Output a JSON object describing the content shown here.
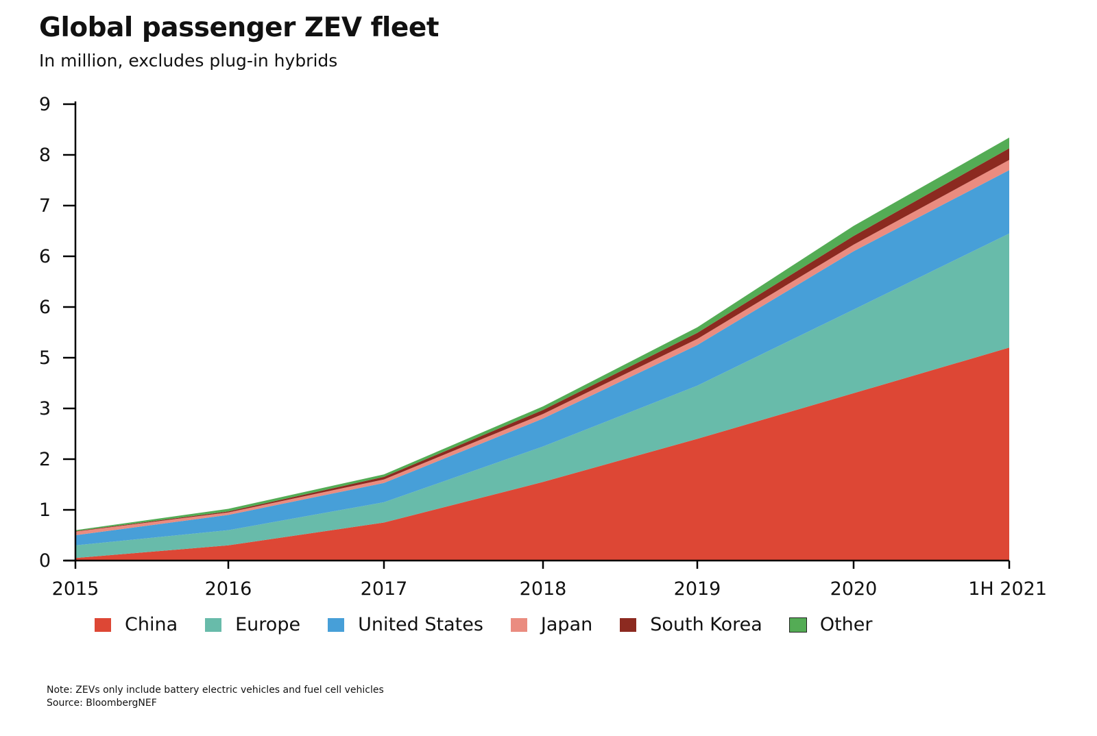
{
  "title": "Global passenger ZEV fleet",
  "subtitle": "In million, excludes plug-in hybrids",
  "note": "Note: ZEVs only include battery electric vehicles and fuel cell vehicles",
  "source": "Source: BloombergNEF",
  "chart_data": {
    "type": "area",
    "stacked": true,
    "title": "Global passenger ZEV fleet",
    "subtitle": "In million, excludes plug-in hybrids",
    "categories": [
      "2015",
      "2016",
      "2017",
      "2018",
      "2019",
      "2020",
      "1H 2021"
    ],
    "y_tick_labels": [
      "0",
      "1",
      "2",
      "3",
      "5",
      "6",
      "6",
      "7",
      "8",
      "9"
    ],
    "legend_position": "bottom",
    "grid": false,
    "series": [
      {
        "name": "China",
        "color": "#dd4735",
        "values": [
          0.05,
          0.3,
          0.75,
          1.55,
          2.4,
          3.3,
          4.2
        ]
      },
      {
        "name": "Europe",
        "color": "#68bbaa",
        "values": [
          0.25,
          0.3,
          0.4,
          0.7,
          1.05,
          1.65,
          2.25
        ]
      },
      {
        "name": "United States",
        "color": "#479fd8",
        "values": [
          0.2,
          0.3,
          0.38,
          0.55,
          0.8,
          1.15,
          1.25
        ]
      },
      {
        "name": "Japan",
        "color": "#ea8c80",
        "values": [
          0.07,
          0.05,
          0.07,
          0.09,
          0.12,
          0.13,
          0.2
        ]
      },
      {
        "name": "South Korea",
        "color": "#8c2a20",
        "values": [
          0.01,
          0.02,
          0.05,
          0.08,
          0.12,
          0.17,
          0.23
        ]
      },
      {
        "name": "Other",
        "color": "#54ac55",
        "values": [
          0.02,
          0.05,
          0.05,
          0.07,
          0.11,
          0.2,
          0.21
        ]
      }
    ]
  }
}
